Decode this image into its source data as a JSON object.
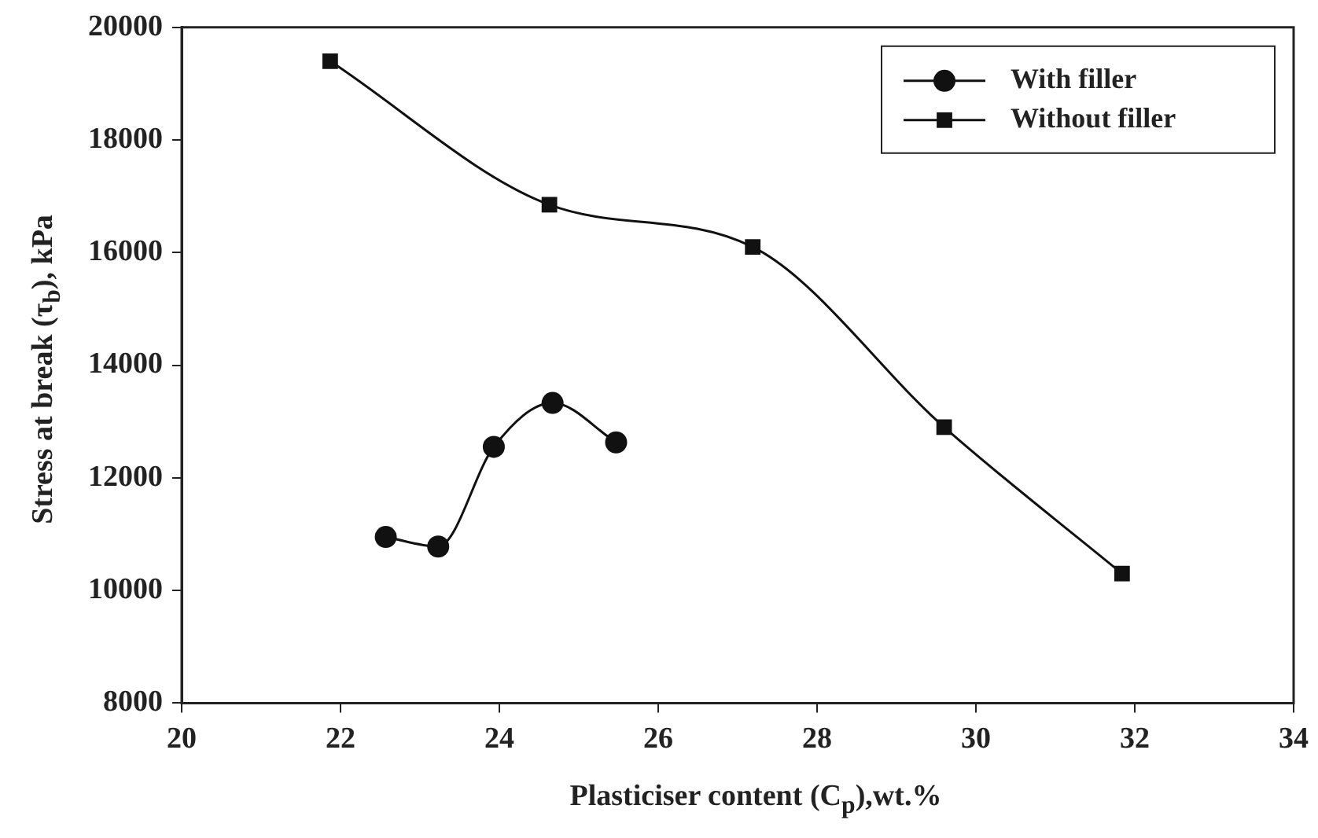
{
  "chart_data": {
    "type": "line",
    "xlabel": "Plasticiser content (C$_{p}$),wt.%",
    "ylabel": "Stress at break (τ$_{b}$), kPa",
    "xlim": [
      20,
      34
    ],
    "xticks": [
      20,
      22,
      24,
      26,
      28,
      30,
      32,
      34
    ],
    "ylim": [
      8000,
      20000
    ],
    "yticks": [
      8000,
      10000,
      12000,
      14000,
      16000,
      18000,
      20000
    ],
    "grid": false,
    "legend": "top right",
    "line_style": "solid",
    "series": [
      {
        "name": "With filler",
        "color": "#111111",
        "marker": "circle",
        "x": [
          22.57,
          23.23,
          23.93,
          24.67,
          25.47
        ],
        "values": [
          10950,
          10780,
          12550,
          13330,
          12630
        ]
      },
      {
        "name": "Without filler",
        "color": "#111111",
        "marker": "square",
        "x": [
          21.87,
          24.63,
          27.19,
          29.6,
          31.84
        ],
        "values": [
          19400,
          16850,
          16100,
          12900,
          10300
        ]
      }
    ]
  }
}
